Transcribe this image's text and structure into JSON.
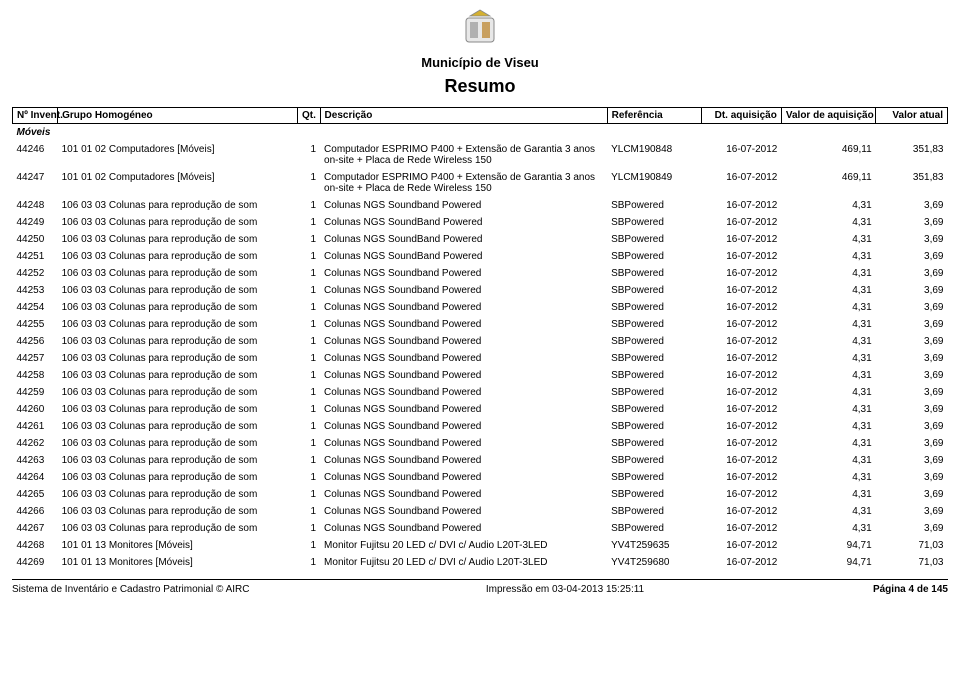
{
  "header": {
    "municipality": "Município de Viseu",
    "title": "Resumo"
  },
  "columns": {
    "inv": "Nº Invent.",
    "group": "Grupo Homogéneo",
    "qt": "Qt.",
    "desc": "Descrição",
    "ref": "Referência",
    "date": "Dt. aquisição",
    "acq": "Valor de aquisição",
    "cur": "Valor atual"
  },
  "section_label": "Móveis",
  "rows": [
    {
      "inv": "44246",
      "group": "101 01 02 Computadores [Móveis]",
      "qt": "1",
      "desc": "Computador ESPRIMO P400 + Extensão de Garantia 3 anos on-site + Placa de Rede Wireless 150",
      "ref": "YLCM190848",
      "date": "16-07-2012",
      "acq": "469,11",
      "cur": "351,83"
    },
    {
      "inv": "44247",
      "group": "101 01 02 Computadores [Móveis]",
      "qt": "1",
      "desc": "Computador ESPRIMO P400 + Extensão de Garantia 3 anos on-site + Placa de Rede Wireless 150",
      "ref": "YLCM190849",
      "date": "16-07-2012",
      "acq": "469,11",
      "cur": "351,83"
    },
    {
      "inv": "44248",
      "group": "106 03 03 Colunas para reprodução de som",
      "qt": "1",
      "desc": "Colunas NGS Soundband Powered",
      "ref": "SBPowered",
      "date": "16-07-2012",
      "acq": "4,31",
      "cur": "3,69"
    },
    {
      "inv": "44249",
      "group": "106 03 03 Colunas para reprodução de som",
      "qt": "1",
      "desc": "Colunas NGS SoundBand Powered",
      "ref": "SBPowered",
      "date": "16-07-2012",
      "acq": "4,31",
      "cur": "3,69"
    },
    {
      "inv": "44250",
      "group": "106 03 03 Colunas para reprodução de som",
      "qt": "1",
      "desc": "Colunas NGS SoundBand Powered",
      "ref": "SBPowered",
      "date": "16-07-2012",
      "acq": "4,31",
      "cur": "3,69"
    },
    {
      "inv": "44251",
      "group": "106 03 03 Colunas para reprodução de som",
      "qt": "1",
      "desc": "Colunas NGS SoundBand Powered",
      "ref": "SBPowered",
      "date": "16-07-2012",
      "acq": "4,31",
      "cur": "3,69"
    },
    {
      "inv": "44252",
      "group": "106 03 03 Colunas para reprodução de som",
      "qt": "1",
      "desc": "Colunas NGS Soundband Powered",
      "ref": "SBPowered",
      "date": "16-07-2012",
      "acq": "4,31",
      "cur": "3,69"
    },
    {
      "inv": "44253",
      "group": "106 03 03 Colunas para reprodução de som",
      "qt": "1",
      "desc": "Colunas NGS Soundband Powered",
      "ref": "SBPowered",
      "date": "16-07-2012",
      "acq": "4,31",
      "cur": "3,69"
    },
    {
      "inv": "44254",
      "group": "106 03 03 Colunas para reprodução de som",
      "qt": "1",
      "desc": "Colunas NGS Soundband Powered",
      "ref": "SBPowered",
      "date": "16-07-2012",
      "acq": "4,31",
      "cur": "3,69"
    },
    {
      "inv": "44255",
      "group": "106 03 03 Colunas para reprodução de som",
      "qt": "1",
      "desc": "Colunas NGS Soundband Powered",
      "ref": "SBPowered",
      "date": "16-07-2012",
      "acq": "4,31",
      "cur": "3,69"
    },
    {
      "inv": "44256",
      "group": "106 03 03 Colunas para reprodução de som",
      "qt": "1",
      "desc": "Colunas NGS Soundband Powered",
      "ref": "SBPowered",
      "date": "16-07-2012",
      "acq": "4,31",
      "cur": "3,69"
    },
    {
      "inv": "44257",
      "group": "106 03 03 Colunas para reprodução de som",
      "qt": "1",
      "desc": "Colunas NGS Soundband Powered",
      "ref": "SBPowered",
      "date": "16-07-2012",
      "acq": "4,31",
      "cur": "3,69"
    },
    {
      "inv": "44258",
      "group": "106 03 03 Colunas para reprodução de som",
      "qt": "1",
      "desc": "Colunas NGS Soundband Powered",
      "ref": "SBPowered",
      "date": "16-07-2012",
      "acq": "4,31",
      "cur": "3,69"
    },
    {
      "inv": "44259",
      "group": "106 03 03 Colunas para reprodução de som",
      "qt": "1",
      "desc": "Colunas NGS Soundband Powered",
      "ref": "SBPowered",
      "date": "16-07-2012",
      "acq": "4,31",
      "cur": "3,69"
    },
    {
      "inv": "44260",
      "group": "106 03 03 Colunas para reprodução de som",
      "qt": "1",
      "desc": "Colunas NGS Soundband Powered",
      "ref": "SBPowered",
      "date": "16-07-2012",
      "acq": "4,31",
      "cur": "3,69"
    },
    {
      "inv": "44261",
      "group": "106 03 03 Colunas para reprodução de som",
      "qt": "1",
      "desc": "Colunas NGS Soundband Powered",
      "ref": "SBPowered",
      "date": "16-07-2012",
      "acq": "4,31",
      "cur": "3,69"
    },
    {
      "inv": "44262",
      "group": "106 03 03 Colunas para reprodução de som",
      "qt": "1",
      "desc": "Colunas NGS Soundband Powered",
      "ref": "SBPowered",
      "date": "16-07-2012",
      "acq": "4,31",
      "cur": "3,69"
    },
    {
      "inv": "44263",
      "group": "106 03 03 Colunas para reprodução de som",
      "qt": "1",
      "desc": "Colunas NGS Soundband Powered",
      "ref": "SBPowered",
      "date": "16-07-2012",
      "acq": "4,31",
      "cur": "3,69"
    },
    {
      "inv": "44264",
      "group": "106 03 03 Colunas para reprodução de som",
      "qt": "1",
      "desc": "Colunas NGS Soundband Powered",
      "ref": "SBPowered",
      "date": "16-07-2012",
      "acq": "4,31",
      "cur": "3,69"
    },
    {
      "inv": "44265",
      "group": "106 03 03 Colunas para reprodução de som",
      "qt": "1",
      "desc": "Colunas NGS Soundband Powered",
      "ref": "SBPowered",
      "date": "16-07-2012",
      "acq": "4,31",
      "cur": "3,69"
    },
    {
      "inv": "44266",
      "group": "106 03 03 Colunas para reprodução de som",
      "qt": "1",
      "desc": "Colunas NGS Soundband Powered",
      "ref": "SBPowered",
      "date": "16-07-2012",
      "acq": "4,31",
      "cur": "3,69"
    },
    {
      "inv": "44267",
      "group": "106 03 03 Colunas para reprodução de som",
      "qt": "1",
      "desc": "Colunas NGS Soundband Powered",
      "ref": "SBPowered",
      "date": "16-07-2012",
      "acq": "4,31",
      "cur": "3,69"
    },
    {
      "inv": "44268",
      "group": "101 01 13 Monitores [Móveis]",
      "qt": "1",
      "desc": "Monitor Fujitsu 20 LED c/ DVI c/ Audio L20T-3LED",
      "ref": "YV4T259635",
      "date": "16-07-2012",
      "acq": "94,71",
      "cur": "71,03"
    },
    {
      "inv": "44269",
      "group": "101 01 13 Monitores [Móveis]",
      "qt": "1",
      "desc": "Monitor Fujitsu 20 LED c/ DVI c/ Audio L20T-3LED",
      "ref": "YV4T259680",
      "date": "16-07-2012",
      "acq": "94,71",
      "cur": "71,03"
    }
  ],
  "footer": {
    "left": "Sistema de Inventário e Cadastro Patrimonial © AIRC",
    "center": "Impressão em 03-04-2013 15:25:11",
    "page": "Página 4 de 145"
  }
}
